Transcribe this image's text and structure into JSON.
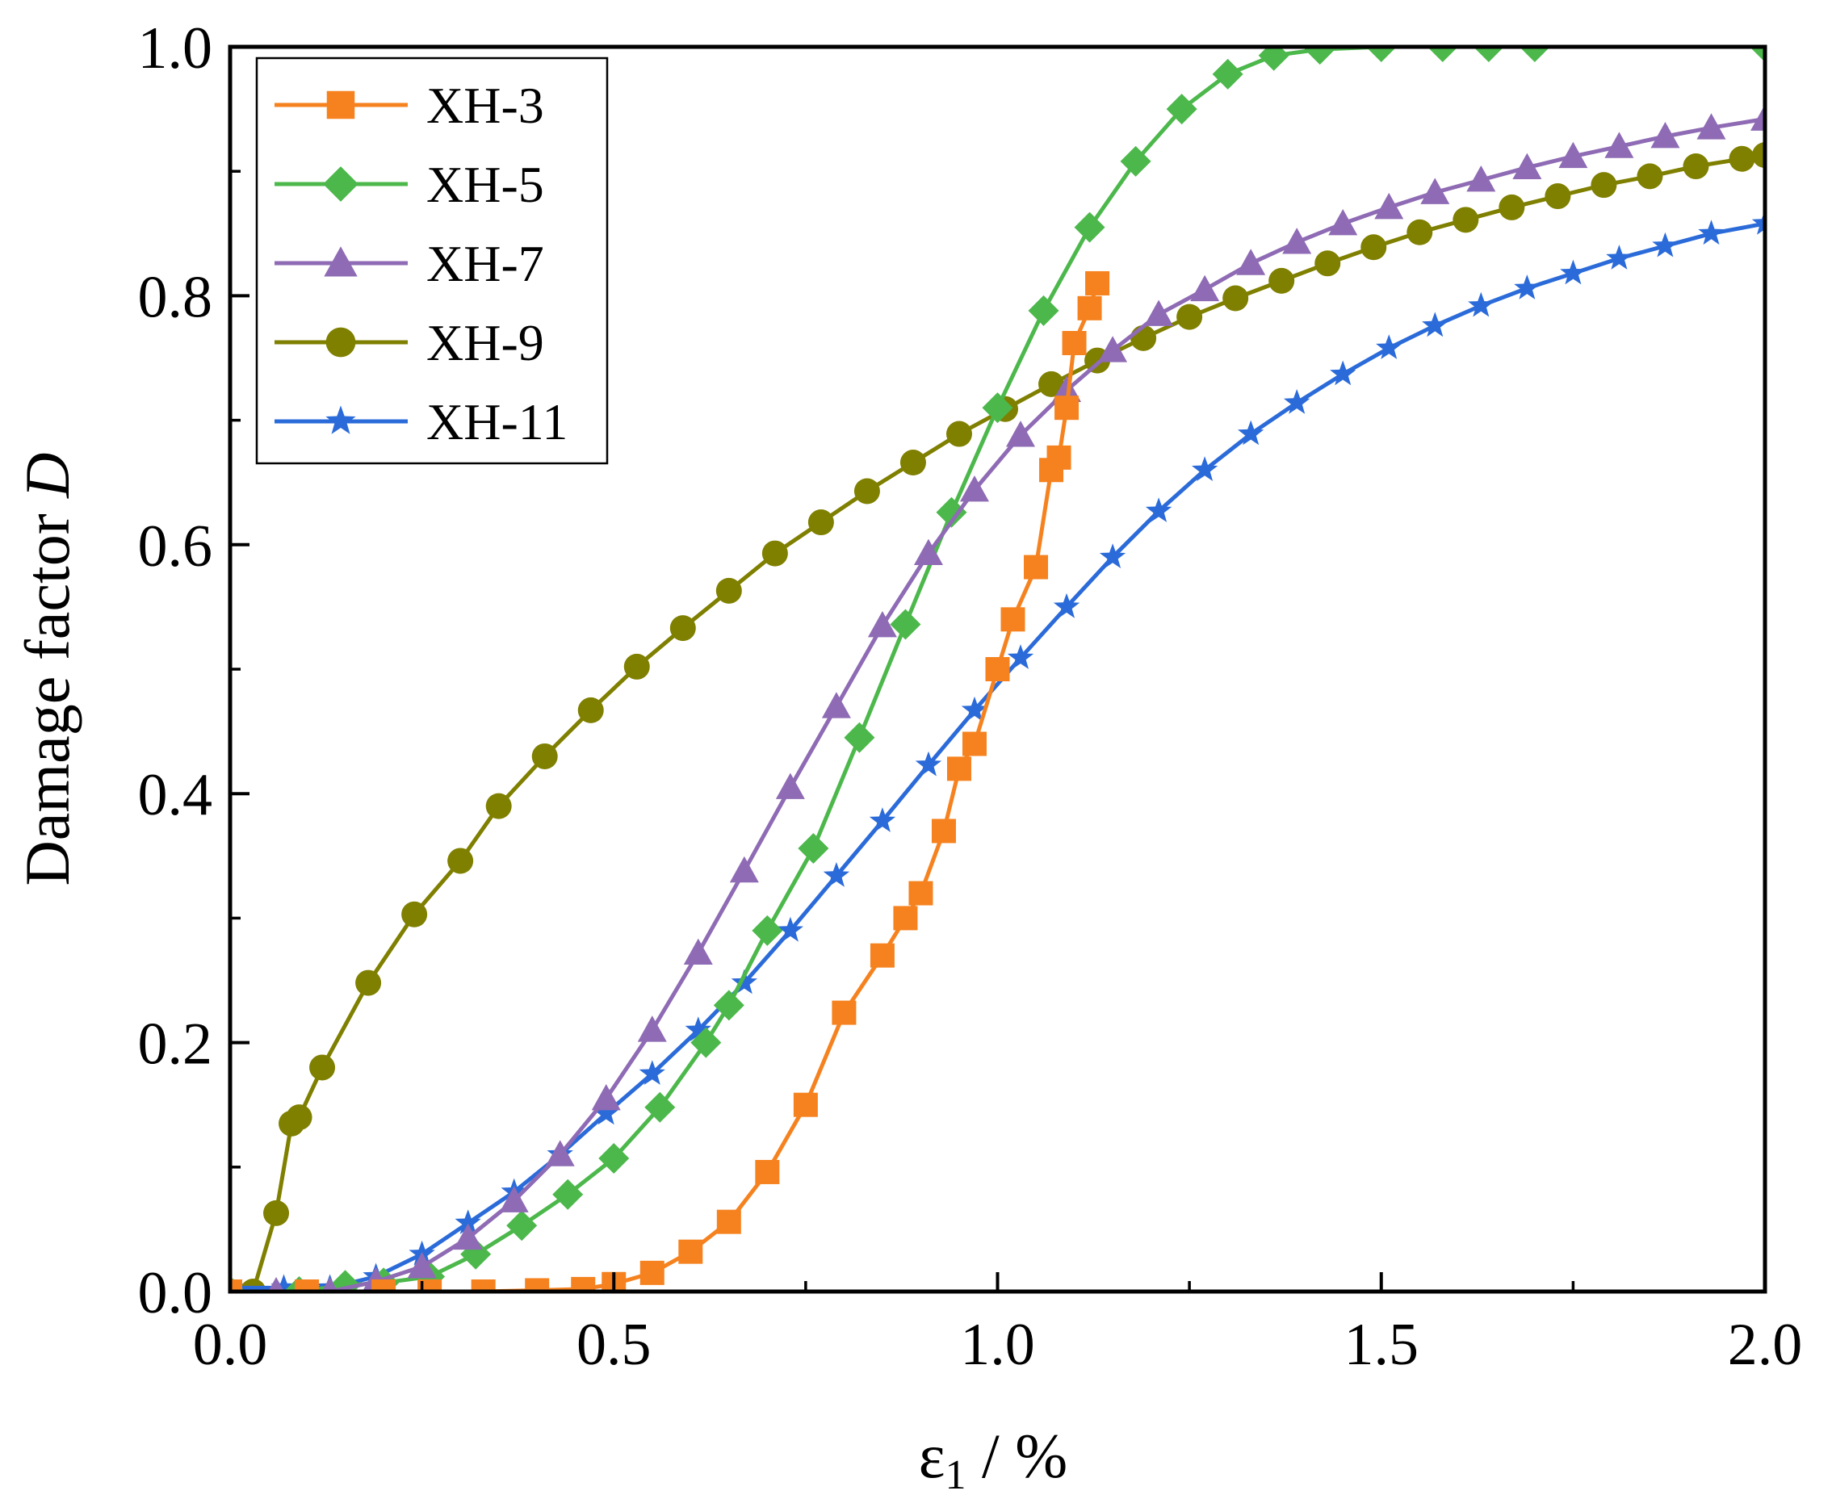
{
  "chart_data": {
    "type": "line",
    "title": "",
    "xlabel": "ε1 / %",
    "xlabel_base": "ε",
    "xlabel_sub": "1",
    "xlabel_unit": " / %",
    "ylabel": "Damage factor D",
    "ylabel_text": "Damage factor ",
    "ylabel_var": "D",
    "xlim": [
      0,
      2.0
    ],
    "ylim": [
      0,
      1.0
    ],
    "xticks": [
      "0.0",
      "0.5",
      "1.0",
      "1.5",
      "2.0"
    ],
    "yticks": [
      "0.0",
      "0.2",
      "0.4",
      "0.6",
      "0.8",
      "1.0"
    ],
    "legend_position": "top-left",
    "series": [
      {
        "name": "XH-3",
        "color": "#F5821F",
        "marker": "square",
        "x": [
          0.0,
          0.1,
          0.2,
          0.26,
          0.33,
          0.4,
          0.46,
          0.5,
          0.55,
          0.6,
          0.65,
          0.7,
          0.75,
          0.8,
          0.85,
          0.88,
          0.9,
          0.93,
          0.95,
          0.97,
          1.0,
          1.02,
          1.05,
          1.07,
          1.08,
          1.09,
          1.1,
          1.12,
          1.13
        ],
        "y": [
          0.0,
          0.0,
          0.0,
          0.0,
          0.0,
          0.001,
          0.002,
          0.006,
          0.015,
          0.032,
          0.056,
          0.096,
          0.15,
          0.224,
          0.27,
          0.3,
          0.32,
          0.37,
          0.42,
          0.44,
          0.5,
          0.54,
          0.582,
          0.66,
          0.67,
          0.71,
          0.762,
          0.79,
          0.81
        ]
      },
      {
        "name": "XH-5",
        "color": "#4CB84B",
        "marker": "diamond",
        "x": [
          0.0,
          0.09,
          0.15,
          0.2,
          0.26,
          0.32,
          0.38,
          0.44,
          0.5,
          0.56,
          0.62,
          0.65,
          0.7,
          0.76,
          0.82,
          0.88,
          0.94,
          1.0,
          1.06,
          1.12,
          1.18,
          1.24,
          1.3,
          1.36,
          1.42,
          1.5,
          1.58,
          1.64,
          1.7,
          2.0
        ],
        "y": [
          0.0,
          0.0,
          0.005,
          0.007,
          0.012,
          0.03,
          0.053,
          0.078,
          0.107,
          0.148,
          0.2,
          0.23,
          0.29,
          0.356,
          0.445,
          0.536,
          0.626,
          0.71,
          0.788,
          0.855,
          0.908,
          0.95,
          0.978,
          0.993,
          0.998,
          1.0,
          1.0,
          1.0,
          1.0,
          1.0
        ]
      },
      {
        "name": "XH-7",
        "color": "#8E6BB4",
        "marker": "triangle",
        "x": [
          0.0,
          0.06,
          0.13,
          0.19,
          0.25,
          0.31,
          0.37,
          0.43,
          0.49,
          0.55,
          0.61,
          0.67,
          0.73,
          0.79,
          0.85,
          0.91,
          0.97,
          1.03,
          1.09,
          1.15,
          1.21,
          1.27,
          1.33,
          1.39,
          1.45,
          1.51,
          1.57,
          1.63,
          1.69,
          1.75,
          1.81,
          1.87,
          1.93,
          2.0
        ],
        "y": [
          0.0,
          0.0,
          0.0,
          0.008,
          0.02,
          0.043,
          0.073,
          0.11,
          0.155,
          0.21,
          0.272,
          0.338,
          0.405,
          0.47,
          0.535,
          0.593,
          0.644,
          0.688,
          0.724,
          0.756,
          0.785,
          0.805,
          0.826,
          0.843,
          0.858,
          0.871,
          0.883,
          0.893,
          0.903,
          0.912,
          0.92,
          0.928,
          0.935,
          0.942
        ]
      },
      {
        "name": "XH-9",
        "color": "#7F7F00",
        "marker": "circle",
        "x": [
          0.0,
          0.03,
          0.06,
          0.08,
          0.09,
          0.12,
          0.18,
          0.24,
          0.3,
          0.35,
          0.41,
          0.47,
          0.53,
          0.59,
          0.65,
          0.71,
          0.77,
          0.83,
          0.89,
          0.95,
          1.01,
          1.07,
          1.13,
          1.19,
          1.25,
          1.31,
          1.37,
          1.43,
          1.49,
          1.55,
          1.61,
          1.67,
          1.73,
          1.79,
          1.85,
          1.91,
          1.97,
          2.0
        ],
        "y": [
          0.0,
          0.0,
          0.063,
          0.135,
          0.14,
          0.18,
          0.248,
          0.303,
          0.346,
          0.39,
          0.43,
          0.467,
          0.502,
          0.533,
          0.563,
          0.593,
          0.618,
          0.643,
          0.666,
          0.689,
          0.709,
          0.729,
          0.748,
          0.766,
          0.783,
          0.798,
          0.812,
          0.826,
          0.839,
          0.851,
          0.861,
          0.871,
          0.88,
          0.889,
          0.896,
          0.904,
          0.91,
          0.913
        ]
      },
      {
        "name": "XH-11",
        "color": "#2B6BD9",
        "marker": "star",
        "x": [
          0.0,
          0.07,
          0.13,
          0.19,
          0.25,
          0.31,
          0.37,
          0.43,
          0.49,
          0.55,
          0.61,
          0.67,
          0.73,
          0.79,
          0.85,
          0.91,
          0.97,
          1.03,
          1.09,
          1.15,
          1.21,
          1.27,
          1.33,
          1.39,
          1.45,
          1.51,
          1.57,
          1.63,
          1.69,
          1.75,
          1.81,
          1.87,
          1.93,
          2.0
        ],
        "y": [
          0.003,
          0.003,
          0.003,
          0.012,
          0.03,
          0.055,
          0.08,
          0.11,
          0.143,
          0.175,
          0.21,
          0.248,
          0.29,
          0.334,
          0.378,
          0.423,
          0.467,
          0.509,
          0.55,
          0.59,
          0.627,
          0.66,
          0.689,
          0.714,
          0.737,
          0.758,
          0.776,
          0.792,
          0.806,
          0.818,
          0.83,
          0.84,
          0.85,
          0.858
        ]
      }
    ]
  }
}
